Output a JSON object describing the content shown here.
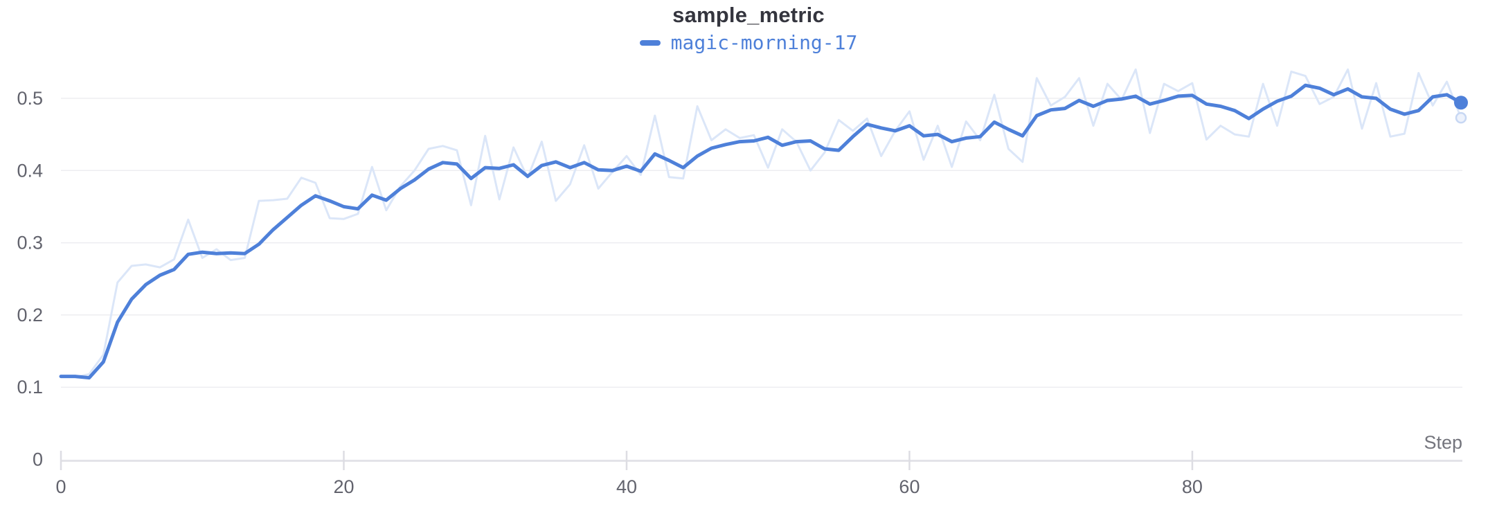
{
  "panel": {
    "title": "sample_metric"
  },
  "legend": {
    "items": [
      {
        "label": "magic-morning-17",
        "color": "#4e80d9"
      }
    ]
  },
  "axes": {
    "x": {
      "label": "Step",
      "tick_labels": [
        "0",
        "20",
        "40",
        "60",
        "80"
      ]
    },
    "y": {
      "tick_labels": [
        "0",
        "0.1",
        "0.2",
        "0.3",
        "0.4",
        "0.5"
      ]
    }
  },
  "colors": {
    "line_blue": "#4e80d9",
    "raw_blue": "#dbe6f8",
    "title_text": "#34353e",
    "tick_text": "#62636d",
    "axis_label_text": "#74757d",
    "gridline": "#ededf1",
    "axis_line": "#e3e3e8",
    "tick_mark": "#dddde3",
    "background": "#ffffff",
    "endpoint_ring_fill": "#edf2fc",
    "endpoint_ring_stroke": "#c7d7f3"
  },
  "chart_data": {
    "type": "line",
    "title": "sample_metric",
    "xlabel": "Step",
    "ylabel": "",
    "x_start": 0,
    "x_interval": 1,
    "n_points": 100,
    "xlim": [
      0,
      99
    ],
    "ylim": [
      0,
      0.554
    ],
    "x_tick_values": [
      0,
      20,
      40,
      60,
      80
    ],
    "x_tick_labels": [
      "0",
      "20",
      "40",
      "60",
      "80"
    ],
    "y_tick_values": [
      0,
      0.1,
      0.2,
      0.3,
      0.4,
      0.5
    ],
    "y_tick_labels": [
      "0",
      "0.1",
      "0.2",
      "0.3",
      "0.4",
      "0.5"
    ],
    "grid": "horizontal",
    "legend_position": "top-center",
    "series": [
      {
        "name": "magic-morning-17",
        "role": "original-unsmoothed",
        "color": "#dbe6f8",
        "stroke_width": 3,
        "endpoint_marker": "ring",
        "values": [
          0.115,
          0.114,
          0.118,
          0.145,
          0.245,
          0.268,
          0.27,
          0.266,
          0.277,
          0.332,
          0.279,
          0.291,
          0.276,
          0.279,
          0.358,
          0.359,
          0.361,
          0.39,
          0.383,
          0.334,
          0.333,
          0.34,
          0.405,
          0.345,
          0.378,
          0.4,
          0.43,
          0.434,
          0.428,
          0.352,
          0.448,
          0.36,
          0.432,
          0.39,
          0.44,
          0.358,
          0.381,
          0.435,
          0.375,
          0.398,
          0.42,
          0.394,
          0.476,
          0.391,
          0.389,
          0.489,
          0.442,
          0.457,
          0.445,
          0.449,
          0.404,
          0.457,
          0.44,
          0.4,
          0.425,
          0.47,
          0.455,
          0.472,
          0.42,
          0.455,
          0.482,
          0.415,
          0.462,
          0.405,
          0.468,
          0.442,
          0.505,
          0.43,
          0.412,
          0.528,
          0.49,
          0.502,
          0.528,
          0.462,
          0.52,
          0.498,
          0.54,
          0.452,
          0.52,
          0.51,
          0.521,
          0.443,
          0.462,
          0.45,
          0.447,
          0.52,
          0.462,
          0.537,
          0.531,
          0.492,
          0.502,
          0.54,
          0.458,
          0.521,
          0.447,
          0.451,
          0.535,
          0.49,
          0.523,
          0.473
        ]
      },
      {
        "name": "magic-morning-17",
        "role": "smoothed",
        "color": "#4e80d9",
        "stroke_width": 5,
        "endpoint_marker": "dot",
        "values": [
          0.115,
          0.115,
          0.113,
          0.135,
          0.19,
          0.222,
          0.242,
          0.255,
          0.263,
          0.284,
          0.287,
          0.285,
          0.286,
          0.285,
          0.298,
          0.318,
          0.335,
          0.352,
          0.365,
          0.358,
          0.35,
          0.347,
          0.366,
          0.359,
          0.375,
          0.387,
          0.402,
          0.411,
          0.409,
          0.389,
          0.404,
          0.403,
          0.408,
          0.392,
          0.407,
          0.412,
          0.404,
          0.411,
          0.401,
          0.4,
          0.406,
          0.399,
          0.423,
          0.414,
          0.404,
          0.42,
          0.431,
          0.436,
          0.44,
          0.441,
          0.446,
          0.435,
          0.44,
          0.441,
          0.43,
          0.428,
          0.447,
          0.464,
          0.459,
          0.455,
          0.462,
          0.448,
          0.45,
          0.44,
          0.445,
          0.447,
          0.467,
          0.457,
          0.448,
          0.476,
          0.484,
          0.486,
          0.497,
          0.489,
          0.497,
          0.499,
          0.503,
          0.492,
          0.497,
          0.503,
          0.504,
          0.492,
          0.489,
          0.483,
          0.472,
          0.485,
          0.496,
          0.503,
          0.518,
          0.514,
          0.505,
          0.513,
          0.502,
          0.5,
          0.485,
          0.478,
          0.483,
          0.502,
          0.505,
          0.494
        ]
      }
    ]
  }
}
